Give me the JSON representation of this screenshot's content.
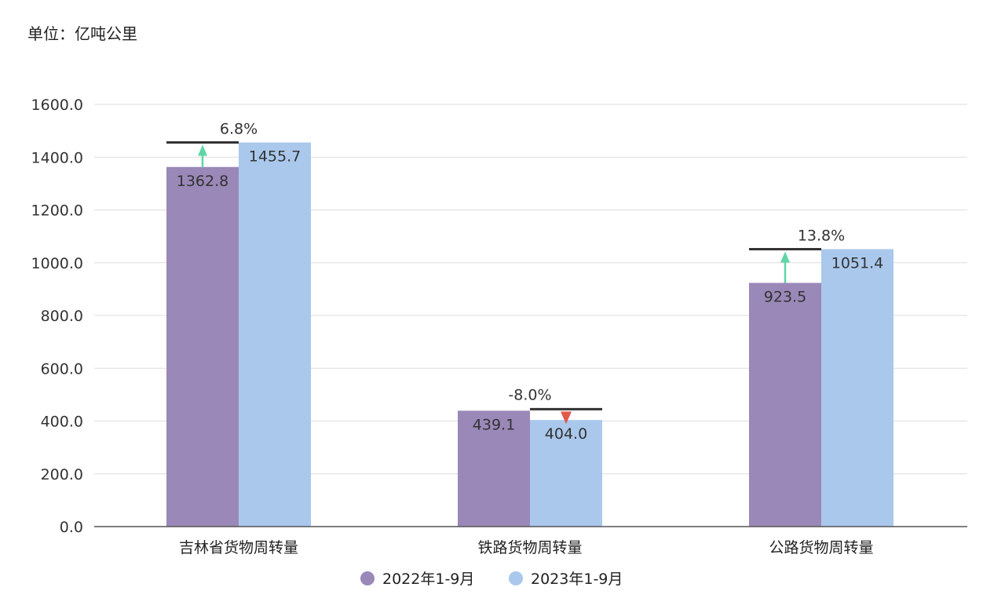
{
  "unit_label": "单位：亿吨公里",
  "colors": {
    "series_2022": "#9a88b8",
    "series_2023": "#a9c8ec",
    "arrow_up": "#5ed6a6",
    "arrow_down": "#e05a4a",
    "grid": "#dddddd",
    "axis": "#555555",
    "text": "#333333"
  },
  "chart_data": {
    "type": "bar",
    "title": "",
    "xlabel": "",
    "ylabel": "",
    "ylim": [
      0,
      1600
    ],
    "yticks": [
      "0.0",
      "200.0",
      "400.0",
      "600.0",
      "800.0",
      "1000.0",
      "1200.0",
      "1400.0",
      "1600.0"
    ],
    "grid": true,
    "legend_position": "bottom-center",
    "categories": [
      "吉林省货物周转量",
      "铁路货物周转量",
      "公路货物周转量"
    ],
    "series": [
      {
        "name": "2022年1-9月",
        "values": [
          1362.8,
          439.1,
          923.5
        ],
        "labels": [
          "1362.8",
          "439.1",
          "923.5"
        ]
      },
      {
        "name": "2023年1-9月",
        "values": [
          1455.7,
          404.0,
          1051.4
        ],
        "labels": [
          "1455.7",
          "404.0",
          "1051.4"
        ]
      }
    ],
    "annotations": [
      {
        "category": "吉林省货物周转量",
        "text": "6.8%",
        "direction": "up"
      },
      {
        "category": "铁路货物周转量",
        "text": "-8.0%",
        "direction": "down"
      },
      {
        "category": "公路货物周转量",
        "text": "13.8%",
        "direction": "up"
      }
    ]
  }
}
